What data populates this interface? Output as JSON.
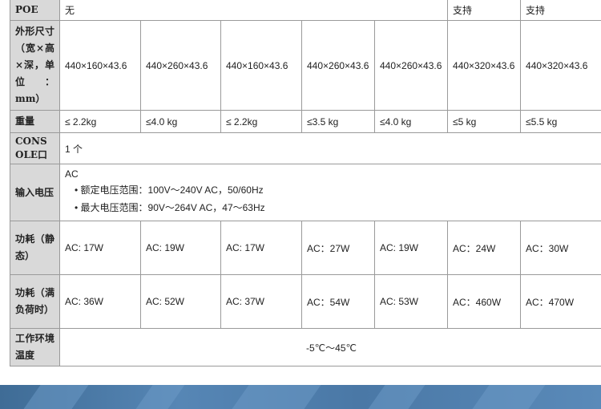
{
  "rows": {
    "poe": {
      "label": "POE",
      "c1": "无",
      "c6": "支持",
      "c7": "支持"
    },
    "dims": {
      "label": "外形尺寸（宽×高×深，单位：mm）",
      "values": [
        "440×160×43.6",
        "440×260×43.6",
        "440×160×43.6",
        "440×260×43.6",
        "440×260×43.6",
        "440×320×43.6",
        "440×320×43.6"
      ]
    },
    "weight": {
      "label": "重量",
      "values": [
        "≤ 2.2kg",
        "≤4.0 kg",
        "≤ 2.2kg",
        "≤3.5 kg",
        "≤4.0 kg",
        "≤5 kg",
        "≤5.5 kg"
      ]
    },
    "console": {
      "label": "CONSOLE口",
      "value": "1 个"
    },
    "input": {
      "label": "输入电压",
      "type": "AC",
      "items": [
        "额定电压范围：100V～240V AC，50/60Hz",
        "最大电压范围：90V～264V AC，47～63Hz"
      ]
    },
    "static": {
      "label": "功耗（静态）",
      "values": [
        "AC: 17W",
        "AC: 19W",
        "AC: 17W",
        "AC：27W",
        "AC: 19W",
        "AC：24W",
        "AC：30W"
      ]
    },
    "full": {
      "label": "功耗（满负荷时）",
      "values": [
        "AC: 36W",
        "AC: 52W",
        "AC: 37W",
        "AC：54W",
        "AC: 53W",
        "AC：460W",
        "AC：470W"
      ]
    },
    "temp": {
      "label": "工作环境温度",
      "value": "-5℃～45℃"
    }
  }
}
